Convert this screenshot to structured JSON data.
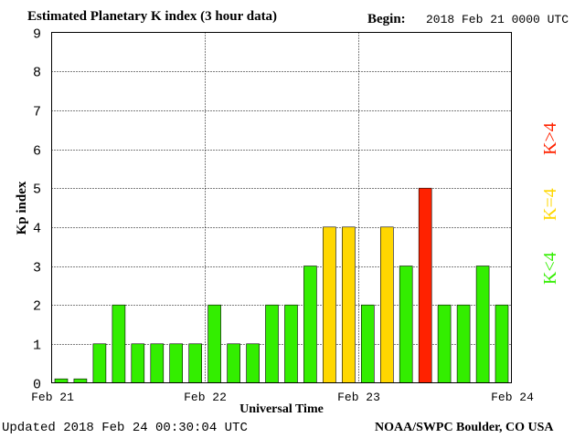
{
  "header": {
    "title": "Estimated Planetary K index (3 hour data)",
    "begin_label": "Begin:",
    "begin_value": "2018 Feb 21 0000 UTC"
  },
  "footer": {
    "updated": "Updated 2018 Feb 24 00:30:04 UTC",
    "source": "NOAA/SWPC Boulder, CO USA"
  },
  "legend": {
    "high": {
      "label": "K>4",
      "color": "#ff2200"
    },
    "equal": {
      "label": "K=4",
      "color": "#ffd700"
    },
    "low": {
      "label": "K<4",
      "color": "#33ee00"
    }
  },
  "chart_data": {
    "type": "bar",
    "title": "Estimated Planetary K index (3 hour data)",
    "xlabel": "Universal Time",
    "ylabel": "Kp index",
    "ylim": [
      0,
      9
    ],
    "yticks": [
      0,
      1,
      2,
      3,
      4,
      5,
      6,
      7,
      8,
      9
    ],
    "xticks": [
      "Feb 21",
      "Feb 22",
      "Feb 23",
      "Feb 24"
    ],
    "grid": true,
    "values": [
      0.1,
      0.1,
      1,
      2,
      1,
      1,
      1,
      1,
      2,
      1,
      1,
      2,
      2,
      3,
      4,
      4,
      2,
      4,
      3,
      5,
      2,
      2,
      3,
      2
    ],
    "colors": {
      "low": "#33ee00",
      "equal": "#ffd700",
      "high": "#ff2200"
    }
  }
}
